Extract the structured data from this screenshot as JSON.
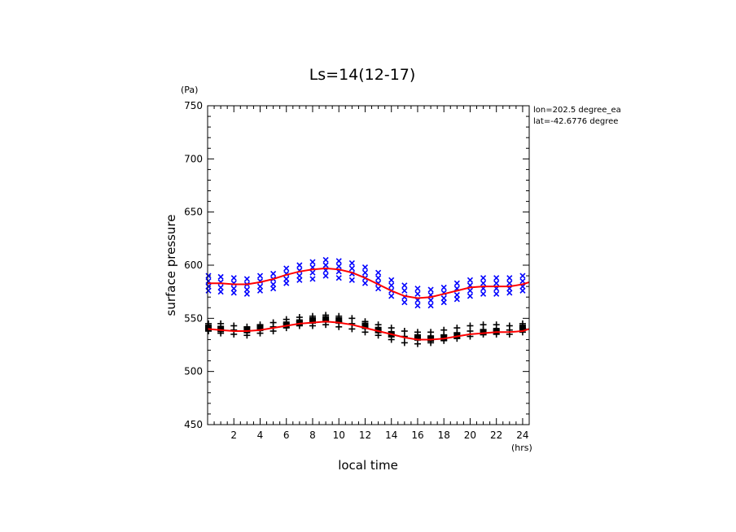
{
  "chart_data": {
    "type": "scatter",
    "title": "Ls=14(12-17)",
    "xlabel": "local time",
    "ylabel": "surface pressure",
    "x_unit": "(hrs)",
    "y_unit": "(Pa)",
    "xlim": [
      0,
      24.5
    ],
    "ylim": [
      450,
      750
    ],
    "x_ticks": [
      2,
      4,
      6,
      8,
      10,
      12,
      14,
      16,
      18,
      20,
      22,
      24
    ],
    "y_ticks": [
      450,
      500,
      550,
      600,
      650,
      700,
      750
    ],
    "annotations": [
      "lon=202.5 degree_ea",
      "lat=-42.6776 degree"
    ],
    "colors": {
      "blue_series": "#0000ff",
      "black_series": "#000000",
      "fit_line": "#ff0000"
    },
    "series": [
      {
        "marker": "x",
        "color": "#0000ff",
        "points": [
          [
            0,
            590
          ],
          [
            0,
            585
          ],
          [
            0,
            580
          ],
          [
            0,
            576
          ],
          [
            1,
            589
          ],
          [
            1,
            584
          ],
          [
            1,
            579
          ],
          [
            1,
            575
          ],
          [
            2,
            588
          ],
          [
            2,
            583
          ],
          [
            2,
            578
          ],
          [
            2,
            574
          ],
          [
            3,
            587
          ],
          [
            3,
            582
          ],
          [
            3,
            577
          ],
          [
            3,
            573
          ],
          [
            4,
            590
          ],
          [
            4,
            585
          ],
          [
            4,
            580
          ],
          [
            4,
            576
          ],
          [
            5,
            592
          ],
          [
            5,
            587
          ],
          [
            5,
            582
          ],
          [
            5,
            578
          ],
          [
            6,
            597
          ],
          [
            6,
            592
          ],
          [
            6,
            587
          ],
          [
            6,
            583
          ],
          [
            7,
            600
          ],
          [
            7,
            595
          ],
          [
            7,
            590
          ],
          [
            7,
            586
          ],
          [
            8,
            603
          ],
          [
            8,
            598
          ],
          [
            8,
            593
          ],
          [
            8,
            587
          ],
          [
            9,
            605
          ],
          [
            9,
            600
          ],
          [
            9,
            595
          ],
          [
            9,
            590
          ],
          [
            10,
            604
          ],
          [
            10,
            599
          ],
          [
            10,
            594
          ],
          [
            10,
            588
          ],
          [
            11,
            602
          ],
          [
            11,
            597
          ],
          [
            11,
            592
          ],
          [
            11,
            586
          ],
          [
            12,
            598
          ],
          [
            12,
            593
          ],
          [
            12,
            588
          ],
          [
            12,
            583
          ],
          [
            13,
            593
          ],
          [
            13,
            588
          ],
          [
            13,
            583
          ],
          [
            13,
            578
          ],
          [
            14,
            586
          ],
          [
            14,
            581
          ],
          [
            14,
            576
          ],
          [
            14,
            571
          ],
          [
            15,
            581
          ],
          [
            15,
            576
          ],
          [
            15,
            570
          ],
          [
            15,
            565
          ],
          [
            16,
            578
          ],
          [
            16,
            573
          ],
          [
            16,
            567
          ],
          [
            16,
            562
          ],
          [
            17,
            577
          ],
          [
            17,
            572
          ],
          [
            17,
            567
          ],
          [
            17,
            562
          ],
          [
            18,
            579
          ],
          [
            18,
            574
          ],
          [
            18,
            569
          ],
          [
            18,
            565
          ],
          [
            19,
            583
          ],
          [
            19,
            578
          ],
          [
            19,
            572
          ],
          [
            19,
            568
          ],
          [
            20,
            586
          ],
          [
            20,
            581
          ],
          [
            20,
            576
          ],
          [
            20,
            571
          ],
          [
            21,
            588
          ],
          [
            21,
            583
          ],
          [
            21,
            578
          ],
          [
            21,
            573
          ],
          [
            22,
            588
          ],
          [
            22,
            583
          ],
          [
            22,
            578
          ],
          [
            22,
            573
          ],
          [
            23,
            588
          ],
          [
            23,
            583
          ],
          [
            23,
            578
          ],
          [
            23,
            574
          ],
          [
            24,
            590
          ],
          [
            24,
            585
          ],
          [
            24,
            580
          ],
          [
            24,
            576
          ]
        ]
      },
      {
        "marker": "+",
        "color": "#000000",
        "points": [
          [
            0,
            545
          ],
          [
            0,
            541
          ],
          [
            0,
            538
          ],
          [
            1,
            545
          ],
          [
            1,
            540
          ],
          [
            1,
            536
          ],
          [
            2,
            543
          ],
          [
            2,
            539
          ],
          [
            2,
            535
          ],
          [
            3,
            542
          ],
          [
            3,
            538
          ],
          [
            3,
            534
          ],
          [
            4,
            544
          ],
          [
            4,
            540
          ],
          [
            4,
            536
          ],
          [
            5,
            546
          ],
          [
            5,
            542
          ],
          [
            5,
            538
          ],
          [
            6,
            549
          ],
          [
            6,
            545
          ],
          [
            6,
            541
          ],
          [
            7,
            551
          ],
          [
            7,
            547
          ],
          [
            7,
            543
          ],
          [
            8,
            552
          ],
          [
            8,
            548
          ],
          [
            8,
            543
          ],
          [
            9,
            553
          ],
          [
            9,
            549
          ],
          [
            9,
            544
          ],
          [
            10,
            552
          ],
          [
            10,
            547
          ],
          [
            10,
            542
          ],
          [
            11,
            550
          ],
          [
            11,
            545
          ],
          [
            11,
            540
          ],
          [
            12,
            547
          ],
          [
            12,
            542
          ],
          [
            12,
            537
          ],
          [
            13,
            544
          ],
          [
            13,
            539
          ],
          [
            13,
            534
          ],
          [
            14,
            541
          ],
          [
            14,
            536
          ],
          [
            14,
            530
          ],
          [
            15,
            538
          ],
          [
            15,
            533
          ],
          [
            15,
            527
          ],
          [
            16,
            537
          ],
          [
            16,
            532
          ],
          [
            16,
            526
          ],
          [
            17,
            537
          ],
          [
            17,
            532
          ],
          [
            17,
            527
          ],
          [
            18,
            539
          ],
          [
            18,
            534
          ],
          [
            18,
            529
          ],
          [
            19,
            541
          ],
          [
            19,
            536
          ],
          [
            19,
            531
          ],
          [
            20,
            543
          ],
          [
            20,
            538
          ],
          [
            20,
            533
          ],
          [
            21,
            544
          ],
          [
            21,
            539
          ],
          [
            21,
            535
          ],
          [
            22,
            544
          ],
          [
            22,
            539
          ],
          [
            22,
            535
          ],
          [
            23,
            543
          ],
          [
            23,
            539
          ],
          [
            23,
            535
          ],
          [
            24,
            545
          ],
          [
            24,
            541
          ],
          [
            24,
            537
          ]
        ]
      },
      {
        "marker": "square",
        "color": "#000000",
        "points": [
          [
            0,
            541
          ],
          [
            1,
            540
          ],
          [
            3,
            539
          ],
          [
            4,
            541
          ],
          [
            6,
            544
          ],
          [
            7,
            546
          ],
          [
            8,
            548
          ],
          [
            9,
            549
          ],
          [
            10,
            548
          ],
          [
            12,
            543
          ],
          [
            13,
            539
          ],
          [
            14,
            535
          ],
          [
            16,
            532
          ],
          [
            17,
            531
          ],
          [
            18,
            532
          ],
          [
            19,
            534
          ],
          [
            21,
            537
          ],
          [
            22,
            538
          ],
          [
            24,
            541
          ]
        ]
      },
      {
        "type": "line",
        "color": "#ff0000",
        "x": [
          0,
          1,
          2,
          3,
          4,
          5,
          6,
          7,
          8,
          9,
          10,
          11,
          12,
          13,
          14,
          15,
          16,
          17,
          18,
          19,
          20,
          21,
          22,
          23,
          24,
          24.5
        ],
        "y": [
          583,
          583,
          582,
          582,
          584,
          587,
          591,
          594,
          596,
          597,
          596,
          593,
          588,
          582,
          576,
          571,
          569,
          570,
          573,
          576,
          579,
          580,
          580,
          580,
          582,
          584
        ]
      },
      {
        "type": "line",
        "color": "#ff0000",
        "x": [
          0,
          1,
          2,
          3,
          4,
          5,
          6,
          7,
          8,
          9,
          10,
          11,
          12,
          13,
          14,
          15,
          16,
          17,
          18,
          19,
          20,
          21,
          22,
          23,
          24,
          24.5
        ],
        "y": [
          540,
          539,
          538,
          538,
          539,
          541,
          543,
          545,
          546,
          547,
          546,
          544,
          541,
          538,
          535,
          532,
          530,
          530,
          531,
          533,
          535,
          536,
          537,
          537,
          538,
          540
        ]
      }
    ]
  }
}
